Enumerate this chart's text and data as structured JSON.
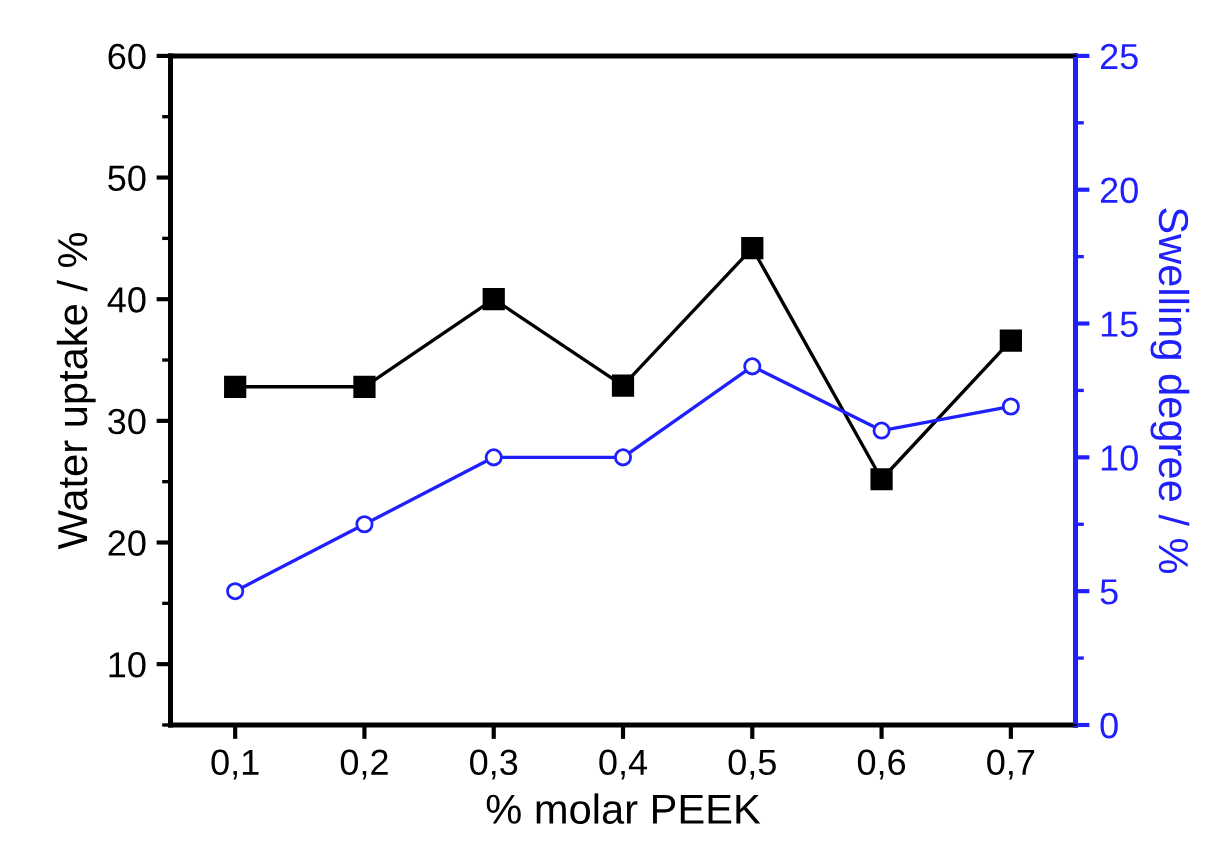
{
  "chart_data": {
    "type": "line",
    "xlabel": "% molar PEEK",
    "ylabel": "Water uptake / %",
    "y2label": "Swelling degree / %",
    "x": [
      0.1,
      0.2,
      0.3,
      0.4,
      0.5,
      0.6,
      0.7
    ],
    "series": [
      {
        "color": "#000000",
        "values": [
          32.8,
          32.8,
          40.0,
          32.9,
          44.2,
          25.2,
          36.6
        ],
        "marker": "square"
      },
      {
        "color": "#2020ff",
        "values": [
          5.0,
          7.5,
          10.0,
          10.0,
          13.4,
          11.0,
          11.9
        ],
        "marker": "circle",
        "axis": "y2"
      }
    ],
    "xlim": [
      0.05,
      0.75
    ],
    "xticks": [
      {
        "value": 0.1,
        "label": "0,1"
      },
      {
        "value": 0.2,
        "label": "0,2"
      },
      {
        "value": 0.3,
        "label": "0,3"
      },
      {
        "value": 0.4,
        "label": "0,4"
      },
      {
        "value": 0.5,
        "label": "0,5"
      },
      {
        "value": 0.6,
        "label": "0,6"
      },
      {
        "value": 0.7,
        "label": "0,7"
      }
    ],
    "ylim": [
      5,
      60
    ],
    "yticks": [
      10,
      20,
      30,
      40,
      50,
      60
    ],
    "y2lim": [
      0,
      25
    ],
    "y2ticks": [
      0,
      5,
      10,
      15,
      20,
      25
    ],
    "grid": false,
    "legend": false,
    "line_style": "solid"
  }
}
